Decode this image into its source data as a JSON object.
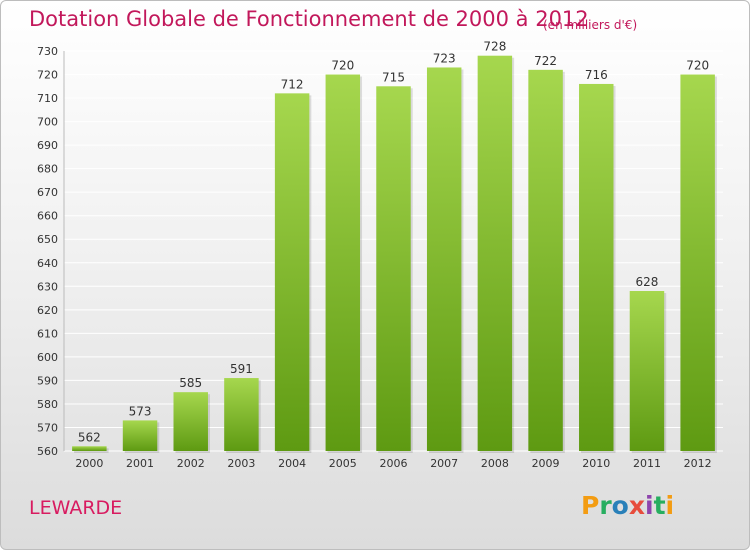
{
  "title": "Dotation Globale de Fonctionnement de 2000 à 2012",
  "unit": "(en milliers d'€)",
  "commune": "LEWARDE",
  "logo": {
    "letters": [
      "P",
      "r",
      "o",
      "x",
      "i",
      "t",
      "i"
    ],
    "colors": [
      "#f39c12",
      "#27ae60",
      "#2980b9",
      "#e74c3c",
      "#8e44ad",
      "#27ae60",
      "#f39c12"
    ]
  },
  "colors": {
    "bar_light": "#a6d74e",
    "bar_dark": "#5e9a12",
    "grid": "#ffffff",
    "title": "#c2185b"
  },
  "chart_data": {
    "type": "bar",
    "title": "Dotation Globale de Fonctionnement de 2000 à 2012",
    "categories": [
      "2000",
      "2001",
      "2002",
      "2003",
      "2004",
      "2005",
      "2006",
      "2007",
      "2008",
      "2009",
      "2010",
      "2011",
      "2012"
    ],
    "values": [
      562,
      573,
      585,
      591,
      712,
      720,
      715,
      723,
      728,
      722,
      716,
      628,
      720
    ],
    "ylim": [
      560,
      730
    ],
    "yticks": [
      560,
      570,
      580,
      590,
      600,
      610,
      620,
      630,
      640,
      650,
      660,
      670,
      680,
      690,
      700,
      710,
      720,
      730
    ],
    "grid": true,
    "xlabel": "",
    "ylabel": ""
  }
}
